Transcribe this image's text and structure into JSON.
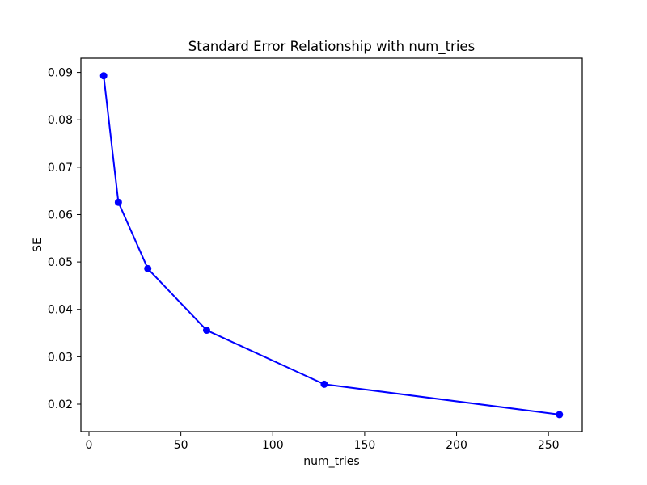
{
  "chart_data": {
    "type": "line",
    "title": "Standard Error Relationship with num_tries",
    "xlabel": "num_tries",
    "ylabel": "SE",
    "x": [
      8,
      16,
      32,
      64,
      128,
      256
    ],
    "y": [
      0.0893,
      0.0626,
      0.0486,
      0.0356,
      0.0242,
      0.0178
    ],
    "xlim": [
      -4.4,
      268.4
    ],
    "ylim": [
      0.0142,
      0.093
    ],
    "xticks": [
      0,
      50,
      100,
      150,
      200,
      250
    ],
    "xtick_labels": [
      "0",
      "50",
      "100",
      "150",
      "200",
      "250"
    ],
    "yticks": [
      0.02,
      0.03,
      0.04,
      0.05,
      0.06,
      0.07,
      0.08,
      0.09
    ],
    "ytick_labels": [
      "0.02",
      "0.03",
      "0.04",
      "0.05",
      "0.06",
      "0.07",
      "0.08",
      "0.09"
    ],
    "line_color": "#0000ff",
    "marker": "circle",
    "marker_radius": 4.5,
    "line_width": 2,
    "grid": false,
    "legend_position": "none",
    "background_color": "#ffffff",
    "spine_color": "#000000",
    "text_color": "#000000"
  }
}
